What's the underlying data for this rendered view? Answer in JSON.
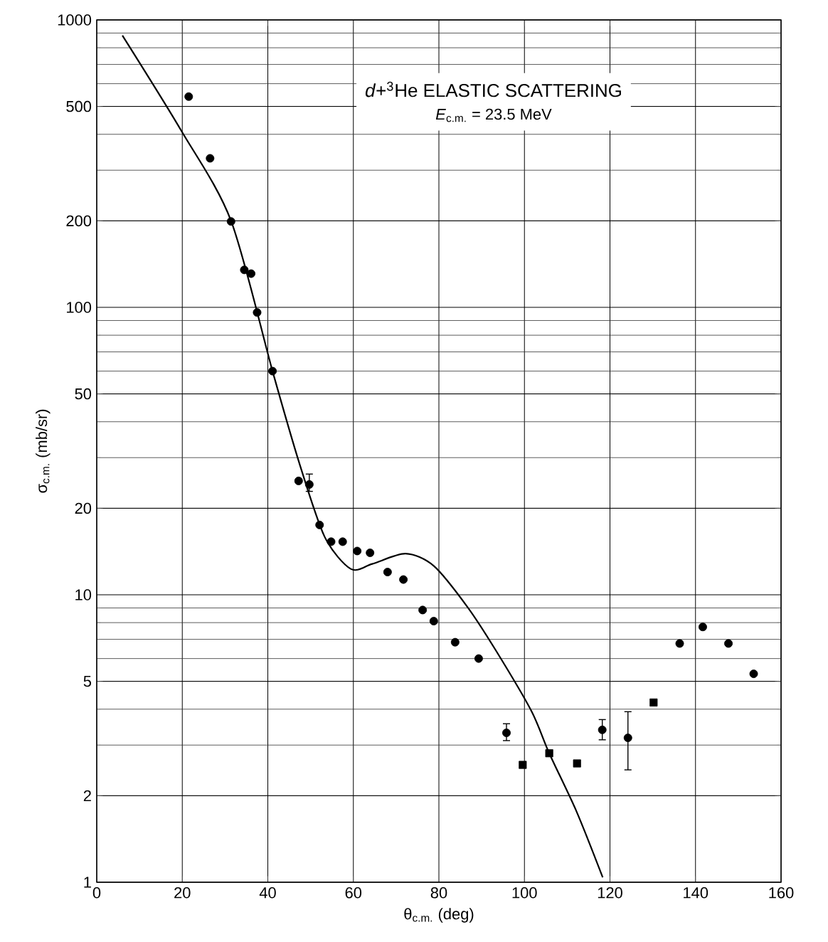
{
  "chart_data": {
    "type": "scatter",
    "title": "*d*+$^{3}$He ELASTIC SCATTERING",
    "subtitle": "*E*$_{c.m.}$ = 23.5 MeV",
    "xlabel": "θ$_{c.m.}$ (deg)",
    "ylabel": "σ$_{c.m.}$ (mb/sr)",
    "xlim": [
      0,
      160
    ],
    "ylim": [
      1,
      1000
    ],
    "xticks": [
      0,
      20,
      40,
      60,
      80,
      100,
      120,
      140,
      160
    ],
    "yticks": [
      1,
      2,
      5,
      10,
      20,
      50,
      100,
      200,
      500,
      1000
    ],
    "log": "y",
    "grid": true,
    "series": [
      {
        "marker": "circle",
        "color": "#000000",
        "x": [
          21.5,
          26.5,
          31.4,
          34.5,
          36.1,
          37.5,
          41.1,
          47.2,
          49.7,
          52.1,
          54.8,
          57.5,
          60.9,
          63.9,
          68.0,
          71.7,
          76.2,
          78.8,
          83.8,
          89.3,
          95.8,
          118.2,
          124.2,
          136.3,
          141.7,
          147.7,
          153.6
        ],
        "values": [
          541,
          330,
          199,
          135,
          131,
          96,
          60,
          24.9,
          24.2,
          17.5,
          15.3,
          15.3,
          14.2,
          14.0,
          12.0,
          11.3,
          8.85,
          8.1,
          6.84,
          6.0,
          3.31,
          3.39,
          3.18,
          6.77,
          7.73,
          6.77,
          5.31
        ],
        "errors": [
          null,
          null,
          null,
          null,
          null,
          null,
          null,
          null,
          [
            22.9,
            26.3
          ],
          null,
          null,
          null,
          null,
          null,
          null,
          null,
          null,
          null,
          null,
          null,
          [
            3.11,
            3.56
          ],
          [
            3.13,
            3.68
          ],
          [
            2.46,
            3.92
          ],
          null,
          null,
          null,
          null
        ]
      },
      {
        "marker": "square",
        "color": "#000000",
        "x": [
          99.6,
          105.8,
          112.3,
          130.2
        ],
        "values": [
          2.56,
          2.81,
          2.59,
          4.22
        ]
      },
      {
        "type": "line",
        "marker": "none",
        "line_style": "solid",
        "color": "#000000",
        "x": [
          6.0,
          19.8,
          31.4,
          41.1,
          47.4,
          53.3,
          59.4,
          64.4,
          72.2,
          78.8,
          86.7,
          93.3,
          101.6,
          105.8,
          112.2,
          118.3
        ],
        "values": [
          883,
          411,
          200,
          60,
          28.6,
          15.9,
          12.3,
          12.8,
          13.9,
          12.6,
          9.06,
          6.41,
          3.95,
          2.81,
          1.76,
          1.04
        ]
      }
    ]
  }
}
